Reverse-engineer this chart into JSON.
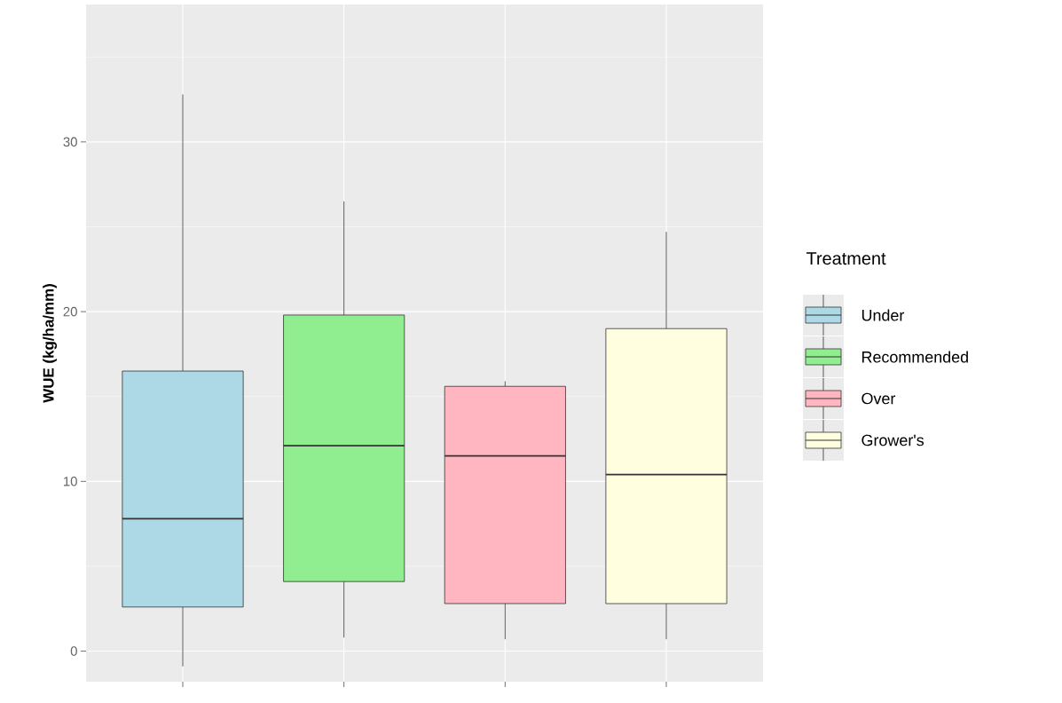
{
  "chart_data": {
    "type": "box",
    "ylabel": "WUE (kg/ha/mm)",
    "legend_title": "Treatment",
    "categories": [
      null,
      null,
      null,
      null
    ],
    "series": [
      {
        "name": "Under",
        "color": "#add8e6",
        "boxes": [
          {
            "low": -0.9,
            "q1": 2.6,
            "median": 7.8,
            "q3": 16.5,
            "high": 32.8
          },
          null,
          null,
          null
        ]
      },
      {
        "name": "Recommended",
        "color": "#90ee90",
        "boxes": [
          null,
          {
            "low": 0.8,
            "q1": 4.1,
            "median": 12.1,
            "q3": 19.8,
            "high": 26.5
          },
          null,
          null
        ]
      },
      {
        "name": "Over",
        "color": "#ffb6c1",
        "boxes": [
          null,
          null,
          {
            "low": 0.7,
            "q1": 2.8,
            "median": 11.5,
            "q3": 15.6,
            "high": 15.9
          },
          null
        ]
      },
      {
        "name": "Grower's",
        "color": "#ffffe0",
        "boxes": [
          null,
          null,
          null,
          {
            "low": 0.7,
            "q1": 2.8,
            "median": 10.4,
            "q3": 19.0,
            "high": 24.7
          }
        ]
      }
    ],
    "ylim": [
      -1.8,
      38.1
    ],
    "yticks": [
      0,
      10,
      20,
      30
    ],
    "grid": true,
    "legend": "right"
  }
}
